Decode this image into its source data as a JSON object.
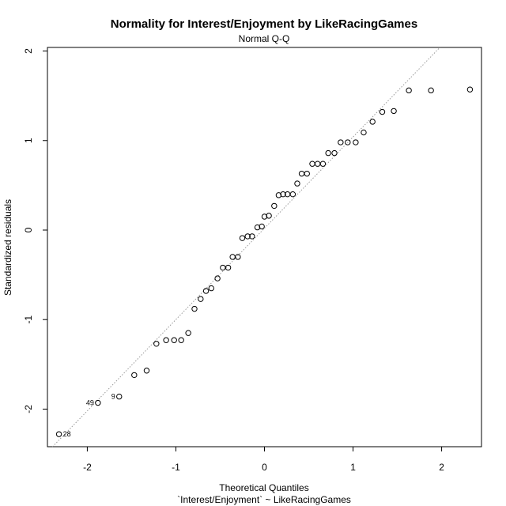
{
  "chart_data": {
    "type": "scatter",
    "title": "Normality for Interest/Enjoyment by LikeRacingGames",
    "subtitle": "Normal Q-Q",
    "xlabel": "Theoretical Quantiles",
    "xlabel2": "`Interest/Enjoyment` ~ LikeRacingGames",
    "ylabel": "Standardized residuals",
    "xlim": [
      -2.45,
      2.45
    ],
    "ylim": [
      -2.42,
      2.04
    ],
    "x_ticks": [
      -2,
      -1,
      0,
      1,
      2
    ],
    "y_ticks": [
      -2,
      -1,
      0,
      1,
      2
    ],
    "reference_line": {
      "intercept": 0.02,
      "slope": 1.02
    },
    "points": [
      {
        "x": -2.32,
        "y": -2.28,
        "label": "28"
      },
      {
        "x": -1.88,
        "y": -1.93,
        "label": "49"
      },
      {
        "x": -1.64,
        "y": -1.86,
        "label": "9"
      },
      {
        "x": -1.47,
        "y": -1.62
      },
      {
        "x": -1.33,
        "y": -1.57
      },
      {
        "x": -1.22,
        "y": -1.27
      },
      {
        "x": -1.11,
        "y": -1.23
      },
      {
        "x": -1.02,
        "y": -1.23
      },
      {
        "x": -0.94,
        "y": -1.23
      },
      {
        "x": -0.86,
        "y": -1.15
      },
      {
        "x": -0.79,
        "y": -0.88
      },
      {
        "x": -0.72,
        "y": -0.77
      },
      {
        "x": -0.66,
        "y": -0.68
      },
      {
        "x": -0.6,
        "y": -0.65
      },
      {
        "x": -0.53,
        "y": -0.54
      },
      {
        "x": -0.47,
        "y": -0.42
      },
      {
        "x": -0.41,
        "y": -0.42
      },
      {
        "x": -0.36,
        "y": -0.3
      },
      {
        "x": -0.3,
        "y": -0.3
      },
      {
        "x": -0.25,
        "y": -0.09
      },
      {
        "x": -0.19,
        "y": -0.07
      },
      {
        "x": -0.14,
        "y": -0.07
      },
      {
        "x": -0.08,
        "y": 0.03
      },
      {
        "x": -0.03,
        "y": 0.04
      },
      {
        "x": 0.0,
        "y": 0.15
      },
      {
        "x": 0.05,
        "y": 0.16
      },
      {
        "x": 0.11,
        "y": 0.27
      },
      {
        "x": 0.16,
        "y": 0.39
      },
      {
        "x": 0.21,
        "y": 0.4
      },
      {
        "x": 0.26,
        "y": 0.4
      },
      {
        "x": 0.32,
        "y": 0.4
      },
      {
        "x": 0.37,
        "y": 0.52
      },
      {
        "x": 0.42,
        "y": 0.63
      },
      {
        "x": 0.48,
        "y": 0.63
      },
      {
        "x": 0.54,
        "y": 0.74
      },
      {
        "x": 0.6,
        "y": 0.74
      },
      {
        "x": 0.66,
        "y": 0.74
      },
      {
        "x": 0.72,
        "y": 0.86
      },
      {
        "x": 0.79,
        "y": 0.86
      },
      {
        "x": 0.86,
        "y": 0.98
      },
      {
        "x": 0.94,
        "y": 0.98
      },
      {
        "x": 1.03,
        "y": 0.98
      },
      {
        "x": 1.12,
        "y": 1.09
      },
      {
        "x": 1.22,
        "y": 1.21
      },
      {
        "x": 1.33,
        "y": 1.32
      },
      {
        "x": 1.46,
        "y": 1.33
      },
      {
        "x": 1.63,
        "y": 1.56
      },
      {
        "x": 1.88,
        "y": 1.56
      },
      {
        "x": 2.32,
        "y": 1.57
      }
    ],
    "grid": false,
    "colors": {
      "points": "#000000",
      "reference_line": "#9a9a9a",
      "frame": "#000000"
    }
  }
}
